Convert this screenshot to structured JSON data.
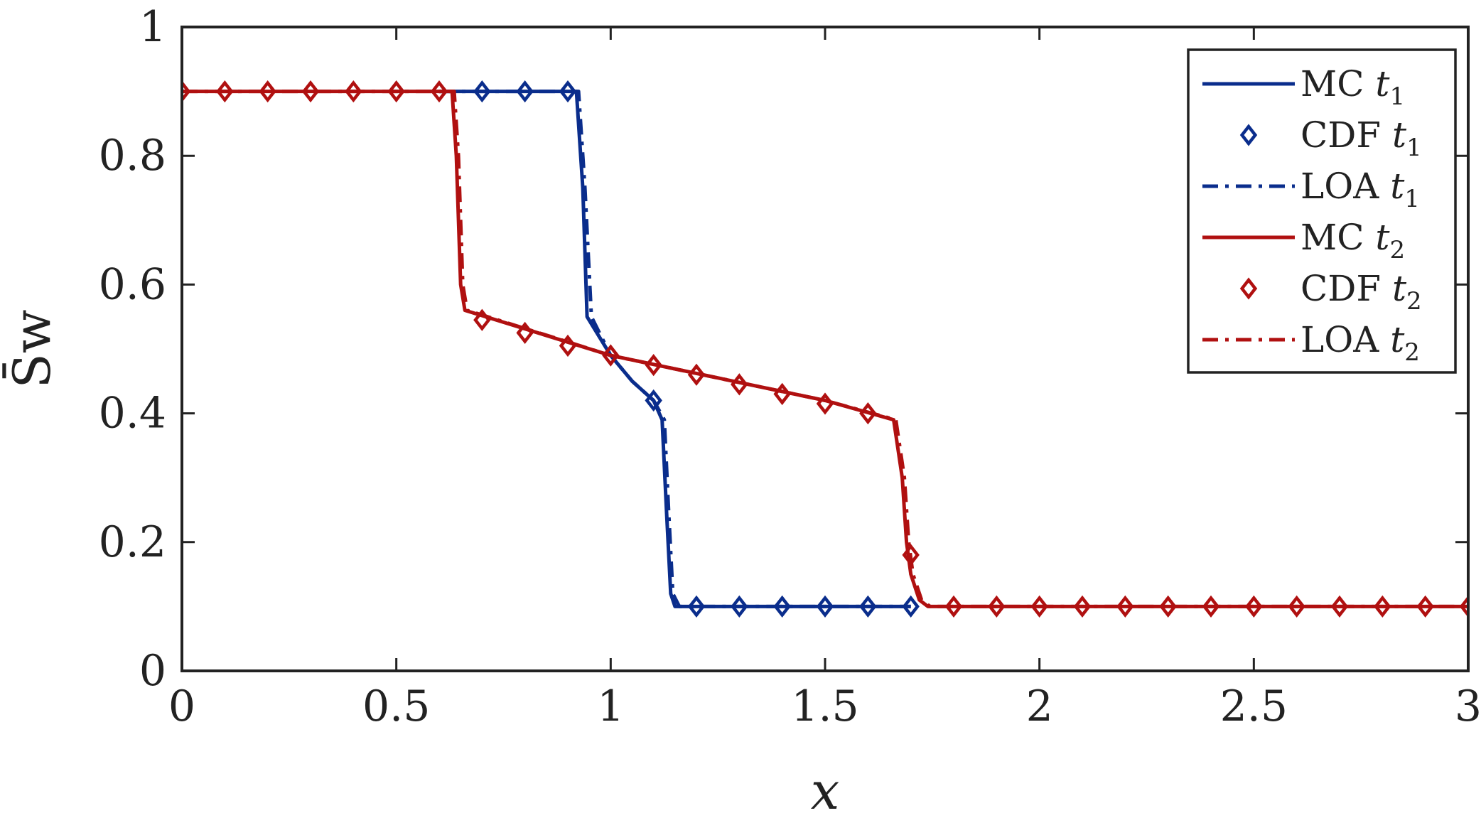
{
  "chart_data": {
    "type": "line",
    "xlabel": "x",
    "ylabel": "S̄w",
    "xlim": [
      0,
      3
    ],
    "ylim": [
      0,
      1
    ],
    "xticks": [
      0,
      0.5,
      1,
      1.5,
      2,
      2.5,
      3
    ],
    "xtick_labels": [
      "0",
      "0.5",
      "1",
      "1.5",
      "2",
      "2.5",
      "3"
    ],
    "yticks": [
      0,
      0.2,
      0.4,
      0.6,
      0.8,
      1
    ],
    "ytick_labels": [
      "0",
      "0.2",
      "0.4",
      "0.6",
      "0.8",
      "1"
    ],
    "grid": false,
    "legend_placement": "top-right",
    "colors": {
      "t1": "#0a2d8c",
      "t2": "#b01010"
    },
    "series": [
      {
        "name": "MC t1",
        "label_main": "MC",
        "label_var": "t",
        "label_sub": "1",
        "style": "solid",
        "color": "#0a2d8c",
        "x": [
          0.6,
          0.92,
          0.935,
          0.945,
          1.0,
          1.05,
          1.1,
          1.12,
          1.13,
          1.14,
          1.15,
          1.7
        ],
        "y": [
          0.9,
          0.9,
          0.75,
          0.55,
          0.49,
          0.45,
          0.42,
          0.39,
          0.25,
          0.12,
          0.1,
          0.1
        ]
      },
      {
        "name": "CDF t1",
        "label_main": "CDF",
        "label_var": "t",
        "label_sub": "1",
        "style": "markers",
        "color": "#0a2d8c",
        "x": [
          0.7,
          0.8,
          0.9,
          1.1,
          1.2,
          1.3,
          1.4,
          1.5,
          1.6,
          1.7
        ],
        "y": [
          0.9,
          0.9,
          0.9,
          0.42,
          0.1,
          0.1,
          0.1,
          0.1,
          0.1,
          0.1
        ]
      },
      {
        "name": "LOA t1",
        "label_main": "LOA",
        "label_var": "t",
        "label_sub": "1",
        "style": "dashdot",
        "color": "#0a2d8c",
        "x": [
          0.6,
          0.925,
          0.94,
          0.955,
          1.0,
          1.05,
          1.1,
          1.125,
          1.135,
          1.145,
          1.16,
          1.7
        ],
        "y": [
          0.9,
          0.9,
          0.75,
          0.55,
          0.49,
          0.45,
          0.42,
          0.39,
          0.25,
          0.12,
          0.1,
          0.1
        ]
      },
      {
        "name": "MC t2",
        "label_main": "MC",
        "label_var": "t",
        "label_sub": "2",
        "style": "solid",
        "color": "#b01010",
        "x": [
          0,
          0.63,
          0.64,
          0.65,
          0.66,
          1.0,
          1.5,
          1.66,
          1.68,
          1.69,
          1.7,
          1.72,
          1.74,
          3.0
        ],
        "y": [
          0.9,
          0.9,
          0.8,
          0.6,
          0.56,
          0.49,
          0.42,
          0.39,
          0.3,
          0.2,
          0.15,
          0.11,
          0.1,
          0.1
        ]
      },
      {
        "name": "CDF t2",
        "label_main": "CDF",
        "label_var": "t",
        "label_sub": "2",
        "style": "markers",
        "color": "#b01010",
        "x": [
          0,
          0.1,
          0.2,
          0.3,
          0.4,
          0.5,
          0.6,
          0.7,
          0.8,
          0.9,
          1.0,
          1.1,
          1.2,
          1.3,
          1.4,
          1.5,
          1.6,
          1.7,
          1.8,
          1.9,
          2.0,
          2.1,
          2.2,
          2.3,
          2.4,
          2.5,
          2.6,
          2.7,
          2.8,
          2.9,
          3.0
        ],
        "y": [
          0.9,
          0.9,
          0.9,
          0.9,
          0.9,
          0.9,
          0.9,
          0.545,
          0.525,
          0.505,
          0.49,
          0.475,
          0.46,
          0.445,
          0.43,
          0.415,
          0.4,
          0.18,
          0.1,
          0.1,
          0.1,
          0.1,
          0.1,
          0.1,
          0.1,
          0.1,
          0.1,
          0.1,
          0.1,
          0.1,
          0.1
        ]
      },
      {
        "name": "LOA t2",
        "label_main": "LOA",
        "label_var": "t",
        "label_sub": "2",
        "style": "dashdot",
        "color": "#b01010",
        "x": [
          0,
          0.635,
          0.645,
          0.655,
          0.665,
          1.0,
          1.5,
          1.665,
          1.685,
          1.695,
          1.705,
          1.725,
          1.745,
          3.0
        ],
        "y": [
          0.9,
          0.9,
          0.8,
          0.6,
          0.56,
          0.49,
          0.42,
          0.39,
          0.3,
          0.2,
          0.15,
          0.11,
          0.1,
          0.1
        ]
      }
    ]
  }
}
